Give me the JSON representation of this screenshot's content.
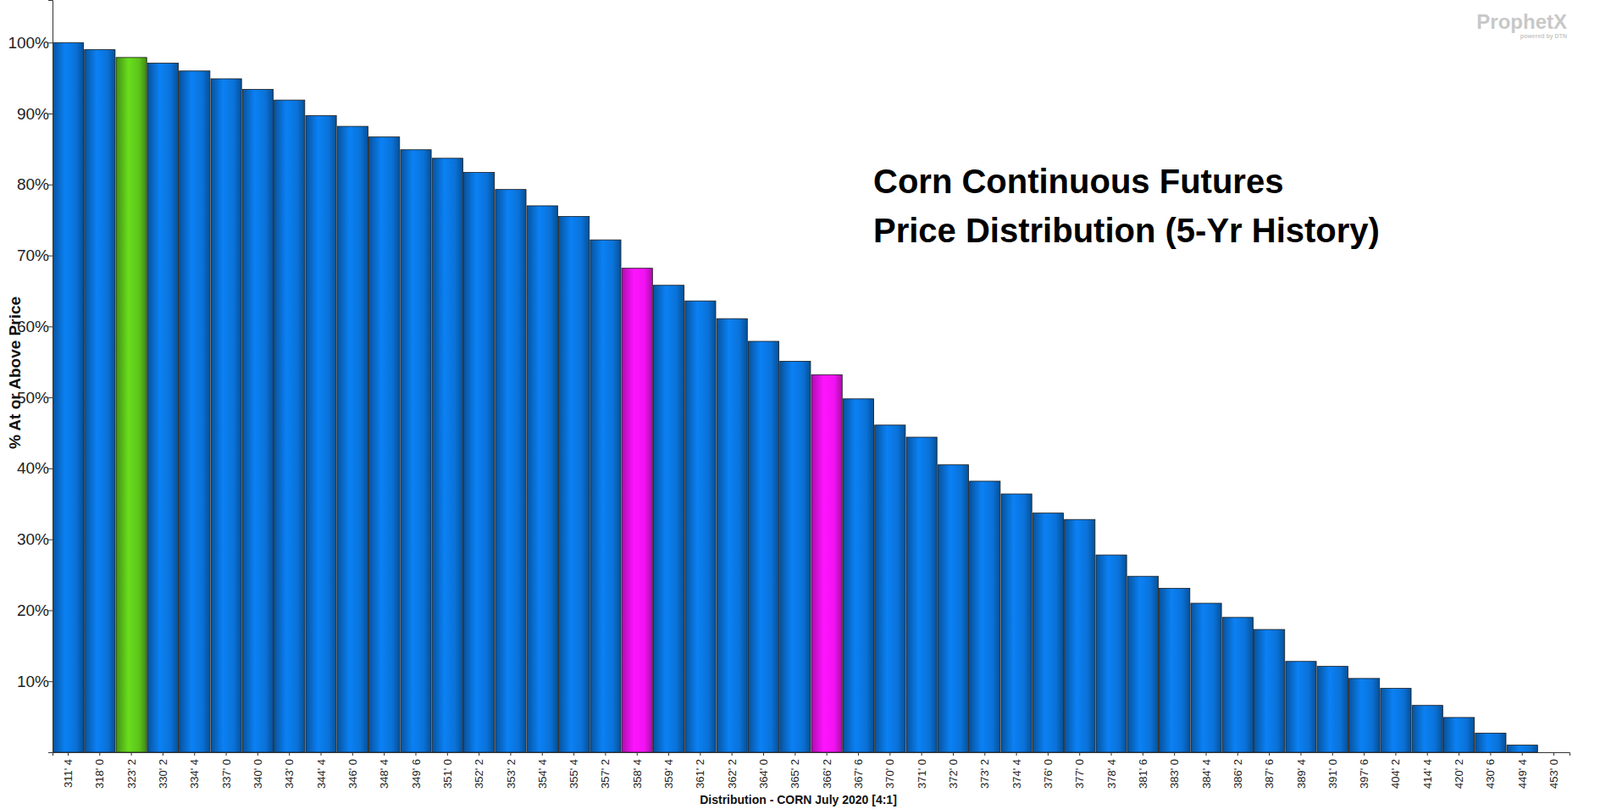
{
  "chart_data": {
    "type": "bar",
    "title": "Corn Continuous Futures",
    "subtitle": "Price Distribution (5-Yr History)",
    "x_label": "Distribution - CORN July 2020  [4:1]",
    "y_label": "% At or Above Price",
    "annotations": [
      "ProphetX",
      "powered by DTN"
    ],
    "categories": [
      "311' 4",
      "318' 0",
      "323' 2",
      "330' 2",
      "334' 4",
      "337' 0",
      "340' 0",
      "343' 0",
      "344' 4",
      "346' 0",
      "348' 4",
      "349' 6",
      "351' 0",
      "352' 2",
      "353' 2",
      "354' 4",
      "355' 4",
      "357' 2",
      "358' 4",
      "359' 4",
      "361' 2",
      "362' 2",
      "364' 0",
      "365' 2",
      "366' 2",
      "367' 6",
      "370' 0",
      "371' 0",
      "372' 0",
      "373' 2",
      "374' 4",
      "376' 0",
      "377' 0",
      "378' 4",
      "381' 6",
      "383' 0",
      "384' 4",
      "386' 2",
      "387' 6",
      "389' 4",
      "391' 0",
      "397' 6",
      "404' 2",
      "414' 4",
      "420' 2",
      "430' 6",
      "449' 4",
      "453' 0"
    ],
    "values": [
      100,
      99.0,
      97.9,
      97.1,
      96.0,
      94.9,
      93.4,
      91.9,
      89.7,
      88.2,
      86.7,
      84.9,
      83.7,
      81.7,
      79.3,
      77.0,
      75.5,
      72.2,
      68.2,
      65.8,
      63.6,
      61.1,
      57.9,
      55.1,
      53.2,
      49.8,
      46.1,
      44.4,
      40.5,
      38.2,
      36.4,
      33.7,
      32.8,
      27.8,
      24.8,
      23.1,
      21.0,
      19.0,
      17.3,
      12.8,
      12.1,
      10.4,
      9.0,
      6.6,
      4.9,
      2.7,
      1.0,
      0
    ],
    "colors": [
      "#0a72d8",
      "#0a72d8",
      "#5cc41a",
      "#0a72d8",
      "#0a72d8",
      "#0a72d8",
      "#0a72d8",
      "#0a72d8",
      "#0a72d8",
      "#0a72d8",
      "#0a72d8",
      "#0a72d8",
      "#0a72d8",
      "#0a72d8",
      "#0a72d8",
      "#0a72d8",
      "#0a72d8",
      "#0a72d8",
      "#f012f0",
      "#0a72d8",
      "#0a72d8",
      "#0a72d8",
      "#0a72d8",
      "#0a72d8",
      "#f012f0",
      "#0a72d8",
      "#0a72d8",
      "#0a72d8",
      "#0a72d8",
      "#0a72d8",
      "#0a72d8",
      "#0a72d8",
      "#0a72d8",
      "#0a72d8",
      "#0a72d8",
      "#0a72d8",
      "#0a72d8",
      "#0a72d8",
      "#0a72d8",
      "#0a72d8",
      "#0a72d8",
      "#0a72d8",
      "#0a72d8",
      "#0a72d8",
      "#0a72d8",
      "#0a72d8",
      "#0a72d8",
      "#0a72d8"
    ],
    "ylim": [
      0,
      106
    ],
    "yticks": [
      {
        "value": 10,
        "label": "10%"
      },
      {
        "value": 20,
        "label": "20%"
      },
      {
        "value": 30,
        "label": "30%"
      },
      {
        "value": 40,
        "label": "40%"
      },
      {
        "value": 50,
        "label": "50%"
      },
      {
        "value": 60,
        "label": "60%"
      },
      {
        "value": 70,
        "label": "70%"
      },
      {
        "value": 80,
        "label": "80%"
      },
      {
        "value": 90,
        "label": "90%"
      },
      {
        "value": 100,
        "label": "100%"
      }
    ],
    "grid": false
  }
}
